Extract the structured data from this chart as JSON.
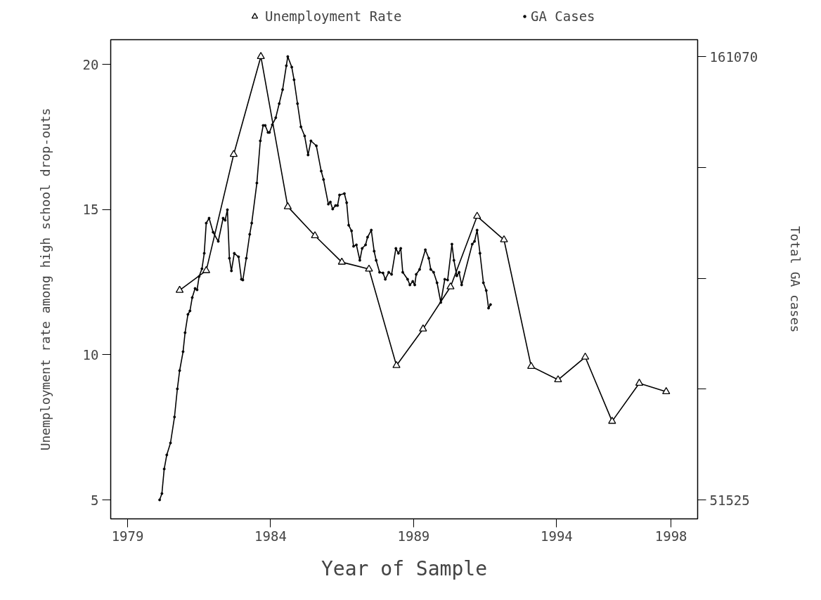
{
  "chart_data": {
    "type": "line",
    "xlabel": "Year of Sample",
    "ylabel": "Unemployment rate among high school drop-outs",
    "y2label": "Total GA cases",
    "xlim": [
      1978.41,
      1998.93
    ],
    "xticks": [
      1979,
      1984,
      1989,
      1994,
      1998
    ],
    "ylim": [
      4.35,
      20.85
    ],
    "yticks": [
      5,
      10,
      15,
      20
    ],
    "y2lim": [
      46840,
      165240
    ],
    "y2ticks": [
      51525,
      {
        "value": 78911,
        "label": null
      },
      {
        "value": 106298,
        "label": null
      },
      {
        "value": 133684,
        "label": null
      },
      161070
    ],
    "grid": false,
    "legend": "top",
    "line_style": "solid",
    "series": [
      {
        "name": "Unemployment Rate",
        "color": "#000000",
        "marker": "triangle",
        "x": [
          1980.82,
          1981.75,
          1982.71,
          1983.66,
          1984.6,
          1985.55,
          1986.49,
          1987.44,
          1988.4,
          1989.33,
          1990.29,
          1991.22,
          1992.16,
          1993.11,
          1994.05,
          1995.0,
          1995.94,
          1996.89,
          1997.83
        ],
        "values": [
          12.22,
          12.9,
          16.9,
          20.27,
          15.1,
          14.1,
          13.19,
          12.95,
          9.63,
          10.89,
          12.34,
          14.77,
          13.96,
          9.6,
          9.14,
          9.92,
          7.71,
          9.02,
          8.73
        ]
      },
      {
        "name": "GA Cases",
        "color": "#000000",
        "marker": "circle",
        "axis": "y2",
        "x": [
          1980.12,
          1980.2,
          1980.28,
          1980.37,
          1980.5,
          1980.64,
          1980.74,
          1980.82,
          1980.94,
          1981.01,
          1981.11,
          1981.18,
          1981.26,
          1981.36,
          1981.43,
          1981.5,
          1981.6,
          1981.68,
          1981.75,
          1981.85,
          1981.99,
          1982.17,
          1982.34,
          1982.41,
          1982.49,
          1982.56,
          1982.63,
          1982.73,
          1982.88,
          1982.98,
          1983.03,
          1983.15,
          1983.27,
          1983.34,
          1983.52,
          1983.64,
          1983.74,
          1983.81,
          1983.91,
          1983.96,
          1984.06,
          1984.18,
          1984.3,
          1984.42,
          1984.55,
          1984.6,
          1984.74,
          1984.82,
          1984.94,
          1985.06,
          1985.19,
          1985.31,
          1985.41,
          1985.6,
          1985.77,
          1985.85,
          1986.02,
          1986.09,
          1986.17,
          1986.27,
          1986.34,
          1986.41,
          1986.58,
          1986.66,
          1986.73,
          1986.83,
          1986.9,
          1987.0,
          1987.12,
          1987.2,
          1987.32,
          1987.39,
          1987.52,
          1987.62,
          1987.69,
          1987.81,
          1987.93,
          1988.01,
          1988.13,
          1988.23,
          1988.38,
          1988.47,
          1988.55,
          1988.62,
          1988.79,
          1988.87,
          1988.97,
          1989.04,
          1989.09,
          1989.21,
          1989.41,
          1989.53,
          1989.6,
          1989.7,
          1989.82,
          1989.95,
          1990.09,
          1990.19,
          1990.34,
          1990.41,
          1990.51,
          1990.59,
          1990.68,
          1991.05,
          1991.13,
          1991.22,
          1991.32,
          1991.44,
          1991.54,
          1991.62,
          1991.69
        ],
        "values": [
          51525,
          53090,
          59160,
          62640,
          65590,
          72010,
          78950,
          83470,
          88150,
          92840,
          97360,
          98220,
          101520,
          103780,
          103430,
          106730,
          108640,
          112460,
          119920,
          121140,
          117670,
          115410,
          121140,
          120620,
          123220,
          111240,
          108120,
          112460,
          111590,
          106040,
          105860,
          111240,
          117150,
          119920,
          129820,
          140240,
          144050,
          144050,
          142320,
          142320,
          144230,
          145960,
          149440,
          152910,
          158810,
          161070,
          158460,
          155340,
          149440,
          143710,
          141450,
          136760,
          140240,
          139020,
          132770,
          130690,
          124610,
          125130,
          123400,
          124260,
          124260,
          126870,
          127210,
          124960,
          119400,
          118010,
          114190,
          114540,
          110720,
          113670,
          114540,
          116450,
          118190,
          112980,
          110720,
          107770,
          107600,
          106040,
          107770,
          107250,
          113670,
          112460,
          113670,
          107770,
          106040,
          104650,
          105520,
          104650,
          107250,
          108470,
          113330,
          111240,
          108470,
          107770,
          105170,
          100310,
          106040,
          105860,
          114720,
          110720,
          106900,
          107770,
          104650,
          114720,
          115410,
          118190,
          112460,
          105170,
          103260,
          98920,
          99790
        ]
      }
    ]
  }
}
